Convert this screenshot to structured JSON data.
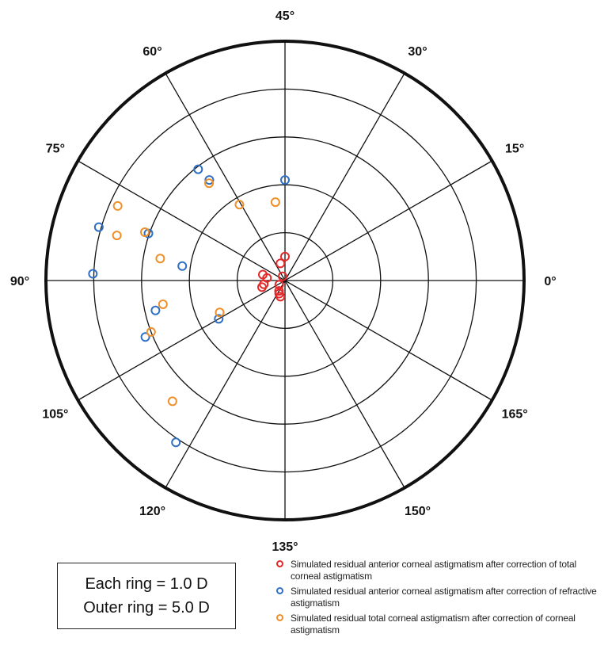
{
  "chart_data": {
    "type": "scatter",
    "coordinate_system": "polar (double-angle astigmatism plot)",
    "angle_labels": [
      "0°",
      "15°",
      "30°",
      "45°",
      "60°",
      "75°",
      "90°",
      "105°",
      "120°",
      "135°",
      "150°",
      "165°"
    ],
    "radial_range": [
      0,
      5
    ],
    "ring_step": 1,
    "info_box": {
      "line1": "Each ring = 1.0 D",
      "line2": "Outer ring = 5.0 D"
    },
    "series": [
      {
        "name": "Simulated residual anterior corneal astigmatism after correction of total corneal astigmatism",
        "color": "#e32a2a",
        "points": [
          {
            "angle": 45.0,
            "mag": 0.5
          },
          {
            "angle": 52.5,
            "mag": 0.37
          },
          {
            "angle": 60.0,
            "mag": 0.1
          },
          {
            "angle": 82.5,
            "mag": 0.48
          },
          {
            "angle": 86.0,
            "mag": 0.38
          },
          {
            "angle": 95.0,
            "mag": 0.45
          },
          {
            "angle": 98.0,
            "mag": 0.5
          },
          {
            "angle": 108.0,
            "mag": 0.15
          },
          {
            "angle": 120.0,
            "mag": 0.25
          },
          {
            "angle": 123.0,
            "mag": 0.3
          },
          {
            "angle": 127.0,
            "mag": 0.35
          }
        ]
      },
      {
        "name": "Simulated residual anterior corneal astigmatism after correction of refractive astigmatism",
        "color": "#2f6fc4",
        "points": [
          {
            "angle": 45.0,
            "mag": 2.1
          },
          {
            "angle": 63.5,
            "mag": 2.63
          },
          {
            "angle": 64.0,
            "mag": 2.95
          },
          {
            "angle": 80.5,
            "mag": 3.02
          },
          {
            "angle": 82.0,
            "mag": 4.05
          },
          {
            "angle": 86.0,
            "mag": 2.17
          },
          {
            "angle": 89.0,
            "mag": 4.02
          },
          {
            "angle": 96.5,
            "mag": 2.78
          },
          {
            "angle": 101.0,
            "mag": 3.15
          },
          {
            "angle": 105.0,
            "mag": 1.6
          },
          {
            "angle": 118.0,
            "mag": 4.08
          }
        ]
      },
      {
        "name": "Simulated residual total corneal astigmatism after correction of corneal astigmatism",
        "color": "#ee8f2a",
        "points": [
          {
            "angle": 48.5,
            "mag": 1.65
          },
          {
            "angle": 60.5,
            "mag": 1.85
          },
          {
            "angle": 64.0,
            "mag": 2.58
          },
          {
            "angle": 78.0,
            "mag": 3.83
          },
          {
            "angle": 80.5,
            "mag": 3.1
          },
          {
            "angle": 82.5,
            "mag": 3.64
          },
          {
            "angle": 85.0,
            "mag": 2.65
          },
          {
            "angle": 95.5,
            "mag": 2.6
          },
          {
            "angle": 100.5,
            "mag": 3.0
          },
          {
            "angle": 103.0,
            "mag": 1.52
          },
          {
            "angle": 113.5,
            "mag": 3.45
          }
        ]
      }
    ]
  }
}
